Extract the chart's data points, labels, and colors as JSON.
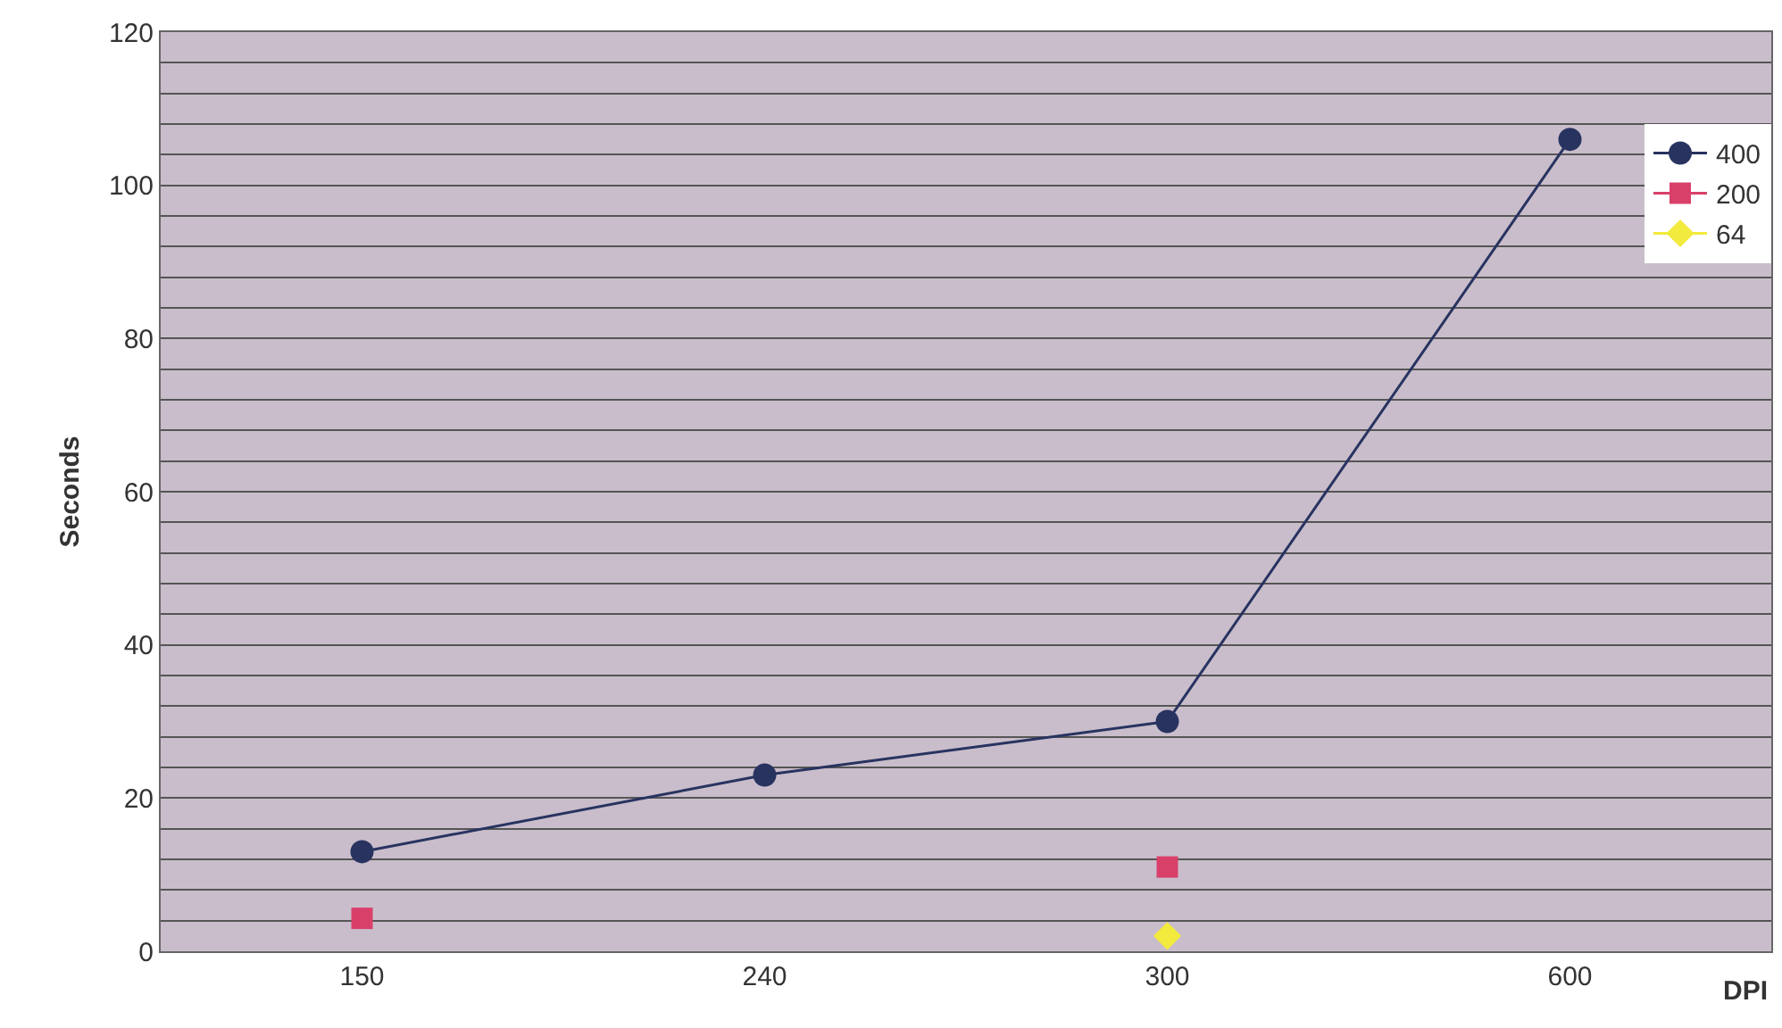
{
  "chart_data": {
    "type": "line",
    "xlabel": "DPI",
    "ylabel": "Seconds",
    "categories": [
      "150",
      "240",
      "300",
      "600"
    ],
    "series": [
      {
        "name": "400",
        "color": "#283360",
        "values": [
          13,
          23,
          30,
          106
        ],
        "marker": "circle",
        "line_style": "solid"
      },
      {
        "name": "200",
        "color": "#d8406a",
        "values": [
          4.3,
          null,
          11,
          null
        ],
        "marker": "square",
        "line_style": "solid"
      },
      {
        "name": "64",
        "color": "#f2ea3c",
        "values": [
          null,
          null,
          2,
          null
        ],
        "marker": "diamond",
        "line_style": "solid"
      }
    ],
    "ylim": [
      0,
      120
    ],
    "yticks": [
      0,
      {
        "value": 4,
        "label": null
      },
      {
        "value": 8,
        "label": null
      },
      {
        "value": 12,
        "label": null
      },
      {
        "value": 16,
        "label": null
      },
      20,
      {
        "value": 24,
        "label": null
      },
      {
        "value": 28,
        "label": null
      },
      {
        "value": 32,
        "label": null
      },
      {
        "value": 36,
        "label": null
      },
      40,
      {
        "value": 44,
        "label": null
      },
      {
        "value": 48,
        "label": null
      },
      {
        "value": 52,
        "label": null
      },
      {
        "value": 56,
        "label": null
      },
      60,
      {
        "value": 64,
        "label": null
      },
      {
        "value": 68,
        "label": null
      },
      {
        "value": 72,
        "label": null
      },
      {
        "value": 76,
        "label": null
      },
      80,
      {
        "value": 84,
        "label": null
      },
      {
        "value": 88,
        "label": null
      },
      {
        "value": 92,
        "label": null
      },
      {
        "value": 96,
        "label": null
      },
      100,
      {
        "value": 104,
        "label": null
      },
      {
        "value": 108,
        "label": null
      },
      {
        "value": 112,
        "label": null
      },
      {
        "value": 116,
        "label": null
      },
      120
    ],
    "grid": "y",
    "legend": "top right"
  }
}
